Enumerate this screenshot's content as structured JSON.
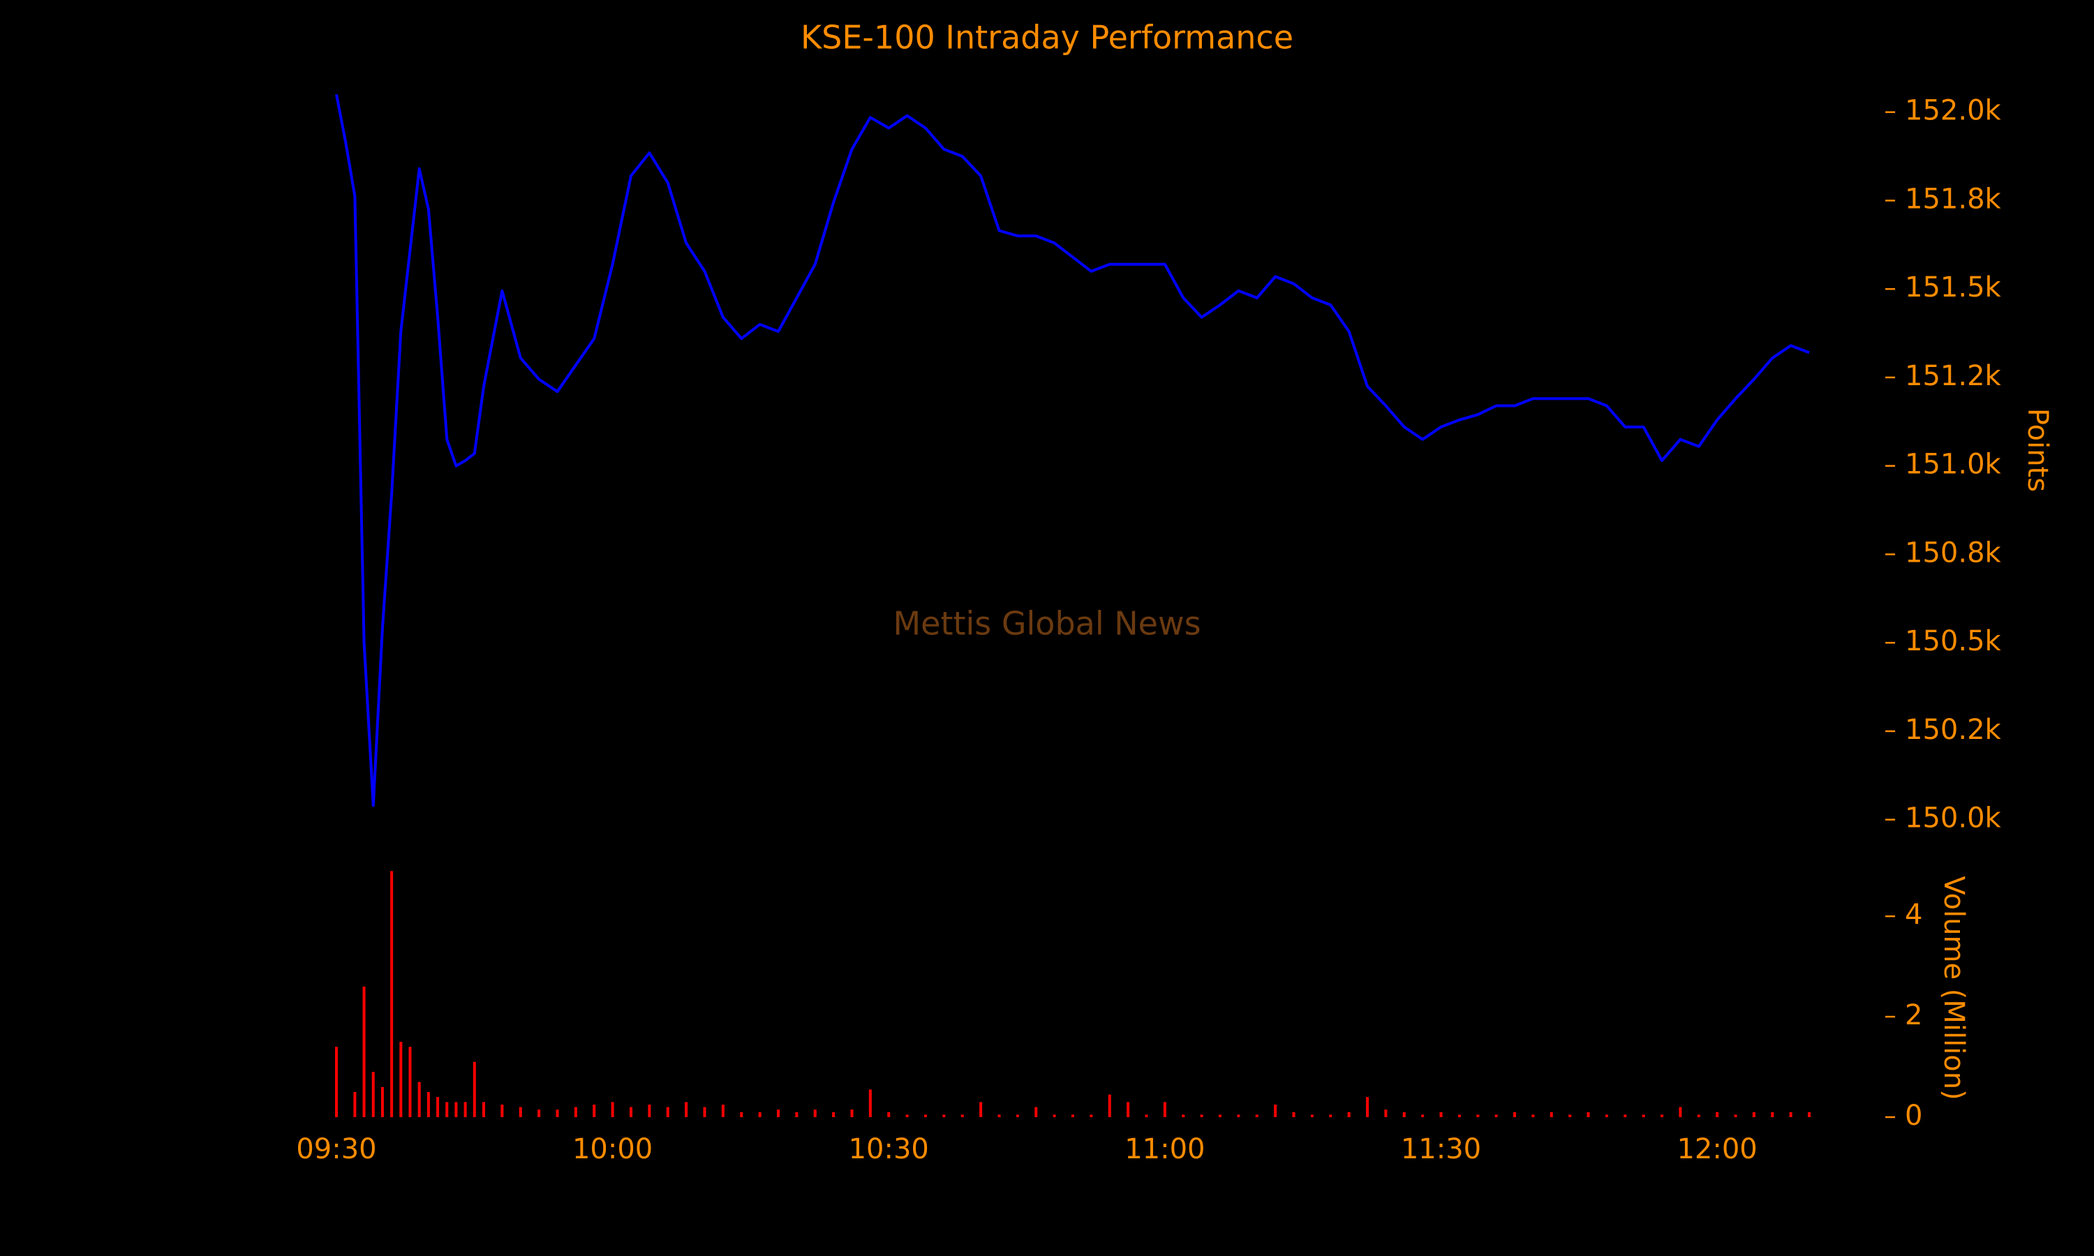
{
  "chart_data": [
    {
      "type": "line",
      "title": "KSE-100 Intraday Performance",
      "ylabel": "Points",
      "annotation": "Mettis Global News",
      "color": "#0000ff",
      "x": [
        "09:30",
        "09:31",
        "09:32",
        "09:33",
        "09:34",
        "09:35",
        "09:36",
        "09:37",
        "09:38",
        "09:39",
        "09:40",
        "09:41",
        "09:42",
        "09:43",
        "09:44",
        "09:45",
        "09:46",
        "09:48",
        "09:50",
        "09:52",
        "09:54",
        "09:56",
        "09:58",
        "10:00",
        "10:02",
        "10:04",
        "10:06",
        "10:08",
        "10:10",
        "10:12",
        "10:14",
        "10:16",
        "10:18",
        "10:20",
        "10:22",
        "10:24",
        "10:26",
        "10:28",
        "10:30",
        "10:32",
        "10:34",
        "10:36",
        "10:38",
        "10:40",
        "10:42",
        "10:44",
        "10:46",
        "10:48",
        "10:50",
        "10:52",
        "10:54",
        "10:56",
        "10:58",
        "11:00",
        "11:02",
        "11:04",
        "11:06",
        "11:08",
        "11:10",
        "11:12",
        "11:14",
        "11:16",
        "11:18",
        "11:20",
        "11:22",
        "11:24",
        "11:26",
        "11:28",
        "11:30",
        "11:32",
        "11:34",
        "11:36",
        "11:38",
        "11:40",
        "11:42",
        "11:44",
        "11:46",
        "11:48",
        "11:50",
        "11:52",
        "11:54",
        "11:56",
        "11:58",
        "12:00",
        "12:02",
        "12:04",
        "12:06",
        "12:08",
        "12:10"
      ],
      "values": [
        152050,
        151915,
        151762,
        150500,
        150040,
        150540,
        150920,
        151380,
        151610,
        151840,
        151725,
        151420,
        151075,
        151000,
        151015,
        151035,
        151225,
        151495,
        151305,
        151245,
        151210,
        151285,
        151360,
        151570,
        151820,
        151885,
        151800,
        151630,
        151550,
        151420,
        151360,
        151400,
        151380,
        151475,
        151570,
        151745,
        151895,
        151985,
        151955,
        151990,
        151955,
        151895,
        151875,
        151820,
        151665,
        151650,
        151650,
        151630,
        151590,
        151550,
        151570,
        151570,
        151570,
        151570,
        151475,
        151420,
        151455,
        151495,
        151475,
        151535,
        151515,
        151475,
        151455,
        151380,
        151225,
        151170,
        151110,
        151075,
        151110,
        151130,
        151145,
        151170,
        151170,
        151190,
        151190,
        151190,
        151190,
        151170,
        151110,
        151110,
        151015,
        151075,
        151055,
        151130,
        151190,
        151245,
        151305,
        151340,
        151320
      ],
      "xlim": [
        "09:30",
        "12:10"
      ],
      "ylim": [
        149950,
        152100
      ],
      "yticks": [
        {
          "value": 150000,
          "label": "150.0k"
        },
        {
          "value": 150250,
          "label": "150.2k"
        },
        {
          "value": 150500,
          "label": "150.5k"
        },
        {
          "value": 150750,
          "label": "150.8k"
        },
        {
          "value": 151000,
          "label": "151.0k"
        },
        {
          "value": 151250,
          "label": "151.2k"
        },
        {
          "value": 151500,
          "label": "151.5k"
        },
        {
          "value": 151750,
          "label": "151.8k"
        },
        {
          "value": 152000,
          "label": "152.0k"
        }
      ]
    },
    {
      "type": "bar",
      "ylabel": "Volume (Million)",
      "color": "#ff0000",
      "x": [
        "09:30",
        "09:31",
        "09:32",
        "09:33",
        "09:34",
        "09:35",
        "09:36",
        "09:37",
        "09:38",
        "09:39",
        "09:40",
        "09:41",
        "09:42",
        "09:43",
        "09:44",
        "09:45",
        "09:46",
        "09:48",
        "09:50",
        "09:52",
        "09:54",
        "09:56",
        "09:58",
        "10:00",
        "10:02",
        "10:04",
        "10:06",
        "10:08",
        "10:10",
        "10:12",
        "10:14",
        "10:16",
        "10:18",
        "10:20",
        "10:22",
        "10:24",
        "10:26",
        "10:28",
        "10:30",
        "10:32",
        "10:34",
        "10:36",
        "10:38",
        "10:40",
        "10:42",
        "10:44",
        "10:46",
        "10:48",
        "10:50",
        "10:52",
        "10:54",
        "10:56",
        "10:58",
        "11:00",
        "11:02",
        "11:04",
        "11:06",
        "11:08",
        "11:10",
        "11:12",
        "11:14",
        "11:16",
        "11:18",
        "11:20",
        "11:22",
        "11:24",
        "11:26",
        "11:28",
        "11:30",
        "11:32",
        "11:34",
        "11:36",
        "11:38",
        "11:40",
        "11:42",
        "11:44",
        "11:46",
        "11:48",
        "11:50",
        "11:52",
        "11:54",
        "11:56",
        "11:58",
        "12:00",
        "12:02",
        "12:04",
        "12:06",
        "12:08",
        "12:10"
      ],
      "values": [
        1.4,
        0,
        0.5,
        2.6,
        0.9,
        0.6,
        4.9,
        1.5,
        1.4,
        0.7,
        0.5,
        0.4,
        0.3,
        0.3,
        0.3,
        1.1,
        0.3,
        0.25,
        0.2,
        0.15,
        0.15,
        0.2,
        0.25,
        0.3,
        0.2,
        0.25,
        0.2,
        0.3,
        0.2,
        0.25,
        0.1,
        0.1,
        0.15,
        0.1,
        0.15,
        0.1,
        0.15,
        0.55,
        0.1,
        0.05,
        0.05,
        0.05,
        0.05,
        0.3,
        0.05,
        0.05,
        0.2,
        0.05,
        0.05,
        0.05,
        0.45,
        0.3,
        0.05,
        0.3,
        0.05,
        0.05,
        0.05,
        0.05,
        0.05,
        0.25,
        0.1,
        0.05,
        0.05,
        0.1,
        0.4,
        0.15,
        0.1,
        0.05,
        0.1,
        0.05,
        0.05,
        0.05,
        0.1,
        0.05,
        0.1,
        0.05,
        0.1,
        0.05,
        0.05,
        0.05,
        0.05,
        0.2,
        0.05,
        0.1,
        0.05,
        0.1,
        0.1,
        0.1,
        0.1
      ],
      "xlim": [
        "09:30",
        "12:10"
      ],
      "ylim": [
        0,
        5.1
      ],
      "yticks": [
        0,
        2,
        4
      ],
      "xticks": [
        "09:30",
        "10:00",
        "10:30",
        "11:00",
        "11:30",
        "12:00"
      ]
    }
  ]
}
